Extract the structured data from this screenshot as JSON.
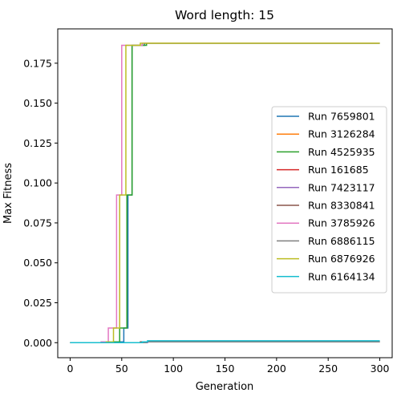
{
  "chart_data": {
    "type": "line",
    "title": "Word length: 15",
    "xlabel": "Generation",
    "ylabel": "Max Fitness",
    "xlim": [
      -12,
      312
    ],
    "ylim": [
      -0.0094,
      0.1965
    ],
    "xticks": [
      0,
      50,
      100,
      150,
      200,
      250,
      300
    ],
    "yticks": [
      0.0,
      0.025,
      0.05,
      0.075,
      0.1,
      0.125,
      0.15,
      0.175
    ],
    "ytick_labels": [
      "0.000",
      "0.025",
      "0.050",
      "0.075",
      "0.100",
      "0.125",
      "0.150",
      "0.175"
    ],
    "grid": false,
    "legend_position": "center-right",
    "series": [
      {
        "name": "Run 7659801",
        "color": "#1f77b4",
        "x": [
          0,
          40,
          40,
          52,
          52,
          56,
          56,
          60,
          60,
          72,
          72,
          300
        ],
        "y": [
          0,
          0,
          0.0005,
          0.0005,
          0.0092,
          0.0092,
          0.0925,
          0.0925,
          0.1862,
          0.1862,
          0.1875,
          0.1875
        ]
      },
      {
        "name": "Run 3126284",
        "color": "#ff7f0e",
        "x": [
          0,
          70,
          70,
          300
        ],
        "y": [
          0,
          0,
          0.0005,
          0.0005
        ]
      },
      {
        "name": "Run 4525935",
        "color": "#2ca02c",
        "x": [
          0,
          38,
          38,
          48,
          48,
          55,
          55,
          60,
          60,
          74,
          74,
          300
        ],
        "y": [
          0,
          0,
          0.0005,
          0.0005,
          0.0092,
          0.0092,
          0.0925,
          0.0925,
          0.1862,
          0.1862,
          0.1875,
          0.1875
        ]
      },
      {
        "name": "Run 161685",
        "color": "#d62728",
        "x": [
          0,
          72,
          72,
          300
        ],
        "y": [
          0,
          0,
          0.0005,
          0.0005
        ]
      },
      {
        "name": "Run 7423117",
        "color": "#9467bd",
        "x": [
          0,
          75,
          75,
          300
        ],
        "y": [
          0,
          0,
          0.0005,
          0.0005
        ]
      },
      {
        "name": "Run 8330841",
        "color": "#8c564b",
        "x": [
          0,
          68,
          68,
          300
        ],
        "y": [
          0,
          0,
          0.0005,
          0.0005
        ]
      },
      {
        "name": "Run 3785926",
        "color": "#e377c2",
        "x": [
          0,
          30,
          30,
          37,
          37,
          45,
          45,
          50,
          50,
          70,
          70,
          300
        ],
        "y": [
          0,
          0,
          0.0005,
          0.0005,
          0.0092,
          0.0092,
          0.0925,
          0.0925,
          0.1862,
          0.1862,
          0.1875,
          0.1875
        ]
      },
      {
        "name": "Run 6886115",
        "color": "#7f7f7f",
        "x": [
          0,
          74,
          74,
          300
        ],
        "y": [
          0,
          0,
          0.0005,
          0.0005
        ]
      },
      {
        "name": "Run 6876926",
        "color": "#bcbd22",
        "x": [
          0,
          35,
          35,
          42,
          42,
          48,
          48,
          54,
          54,
          68,
          68,
          300
        ],
        "y": [
          0,
          0,
          0.0005,
          0.0005,
          0.0092,
          0.0092,
          0.0925,
          0.0925,
          0.1862,
          0.1862,
          0.1875,
          0.1875
        ]
      },
      {
        "name": "Run 6164134",
        "color": "#17becf",
        "x": [
          0,
          70,
          70,
          75,
          75,
          300
        ],
        "y": [
          0,
          0,
          0.0005,
          0.0005,
          0.0012,
          0.0012
        ]
      }
    ]
  }
}
